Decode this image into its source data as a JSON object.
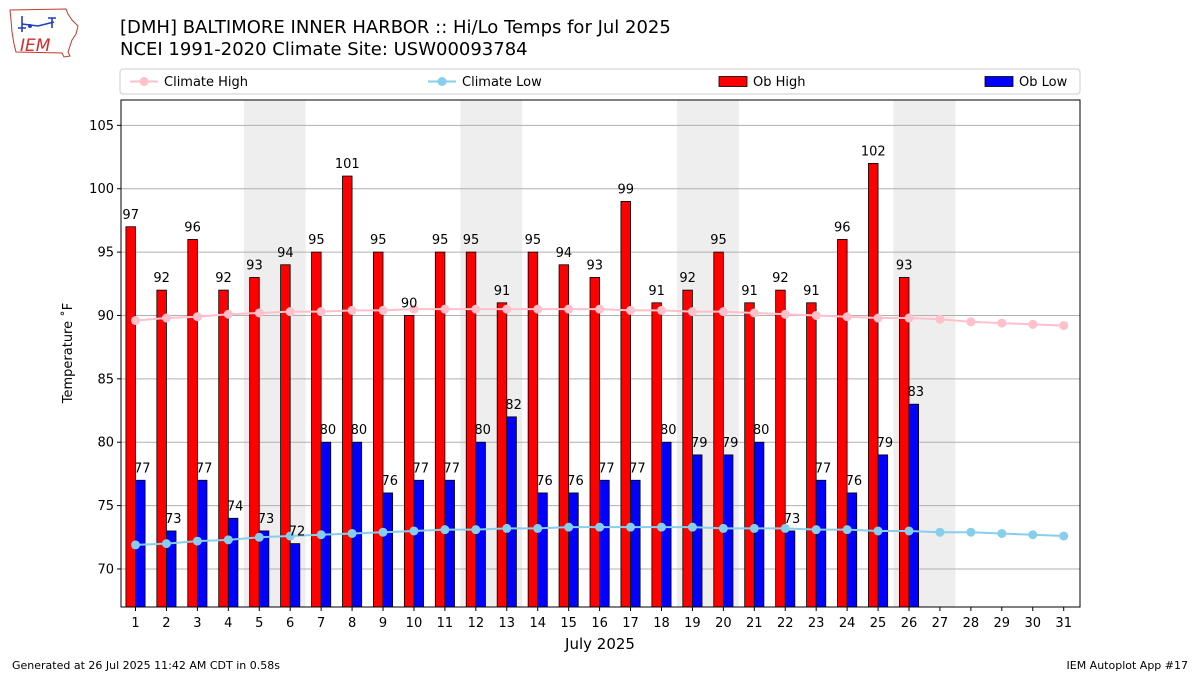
{
  "header": {
    "title_line1": "[DMH] BALTIMORE INNER HARBOR :: Hi/Lo Temps for Jul 2025",
    "title_line2": "NCEI 1991-2020 Climate Site: USW00093784"
  },
  "logo": {
    "text": "IEM",
    "icon": "iowa-state-outline-icon"
  },
  "footer": {
    "generated": "Generated at 26 Jul 2025 11:42 AM CDT in 0.58s",
    "app": "IEM Autoplot App #17"
  },
  "colors": {
    "ob_high": "#ff0000",
    "ob_low": "#0000ff",
    "climate_high": "#ffc0cb",
    "climate_low": "#87ceeb",
    "weekend_band": "#eeeeee",
    "grid": "#b0b0b0"
  },
  "chart_data": {
    "type": "bar",
    "title": "[DMH] BALTIMORE INNER HARBOR :: Hi/Lo Temps for Jul 2025",
    "subtitle": "NCEI 1991-2020 Climate Site: USW00093784",
    "xlabel": "July 2025",
    "ylabel": "Temperature ˚F",
    "ylim": [
      67,
      107
    ],
    "yticks": [
      70,
      75,
      80,
      85,
      90,
      95,
      100,
      105
    ],
    "grid": "horizontal",
    "legend_position": "top",
    "categories": [
      "1",
      "2",
      "3",
      "4",
      "5",
      "6",
      "7",
      "8",
      "9",
      "10",
      "11",
      "12",
      "13",
      "14",
      "15",
      "16",
      "17",
      "18",
      "19",
      "20",
      "21",
      "22",
      "23",
      "24",
      "25",
      "26",
      "27",
      "28",
      "29",
      "30",
      "31"
    ],
    "shaded_days": [
      [
        "5",
        "6"
      ],
      [
        "12",
        "13"
      ],
      [
        "19",
        "20"
      ],
      [
        "26",
        "27"
      ]
    ],
    "series": [
      {
        "name": "Ob High",
        "kind": "bar",
        "color": "#ff0000",
        "values": [
          97,
          92,
          96,
          92,
          93,
          94,
          95,
          101,
          95,
          90,
          95,
          95,
          91,
          95,
          94,
          93,
          99,
          91,
          92,
          95,
          91,
          92,
          91,
          96,
          102,
          93,
          null,
          null,
          null,
          null,
          null
        ]
      },
      {
        "name": "Ob Low",
        "kind": "bar",
        "color": "#0000ff",
        "values": [
          77,
          73,
          77,
          74,
          73,
          72,
          80,
          80,
          76,
          77,
          77,
          80,
          82,
          76,
          76,
          77,
          77,
          80,
          79,
          79,
          80,
          73,
          77,
          76,
          79,
          83,
          null,
          null,
          null,
          null,
          null
        ]
      },
      {
        "name": "Climate High",
        "kind": "line",
        "color": "#ffc0cb",
        "values": [
          89.6,
          89.8,
          89.9,
          90.1,
          90.2,
          90.3,
          90.3,
          90.4,
          90.4,
          90.5,
          90.5,
          90.5,
          90.5,
          90.5,
          90.5,
          90.5,
          90.4,
          90.4,
          90.3,
          90.3,
          90.2,
          90.1,
          90.0,
          89.9,
          89.8,
          89.8,
          89.7,
          89.5,
          89.4,
          89.3,
          89.2
        ]
      },
      {
        "name": "Climate Low",
        "kind": "line",
        "color": "#87ceeb",
        "values": [
          71.9,
          72.0,
          72.2,
          72.3,
          72.5,
          72.6,
          72.7,
          72.8,
          72.9,
          73.0,
          73.1,
          73.1,
          73.2,
          73.2,
          73.3,
          73.3,
          73.3,
          73.3,
          73.3,
          73.2,
          73.2,
          73.2,
          73.1,
          73.1,
          73.0,
          73.0,
          72.9,
          72.9,
          72.8,
          72.7,
          72.6
        ]
      }
    ]
  }
}
